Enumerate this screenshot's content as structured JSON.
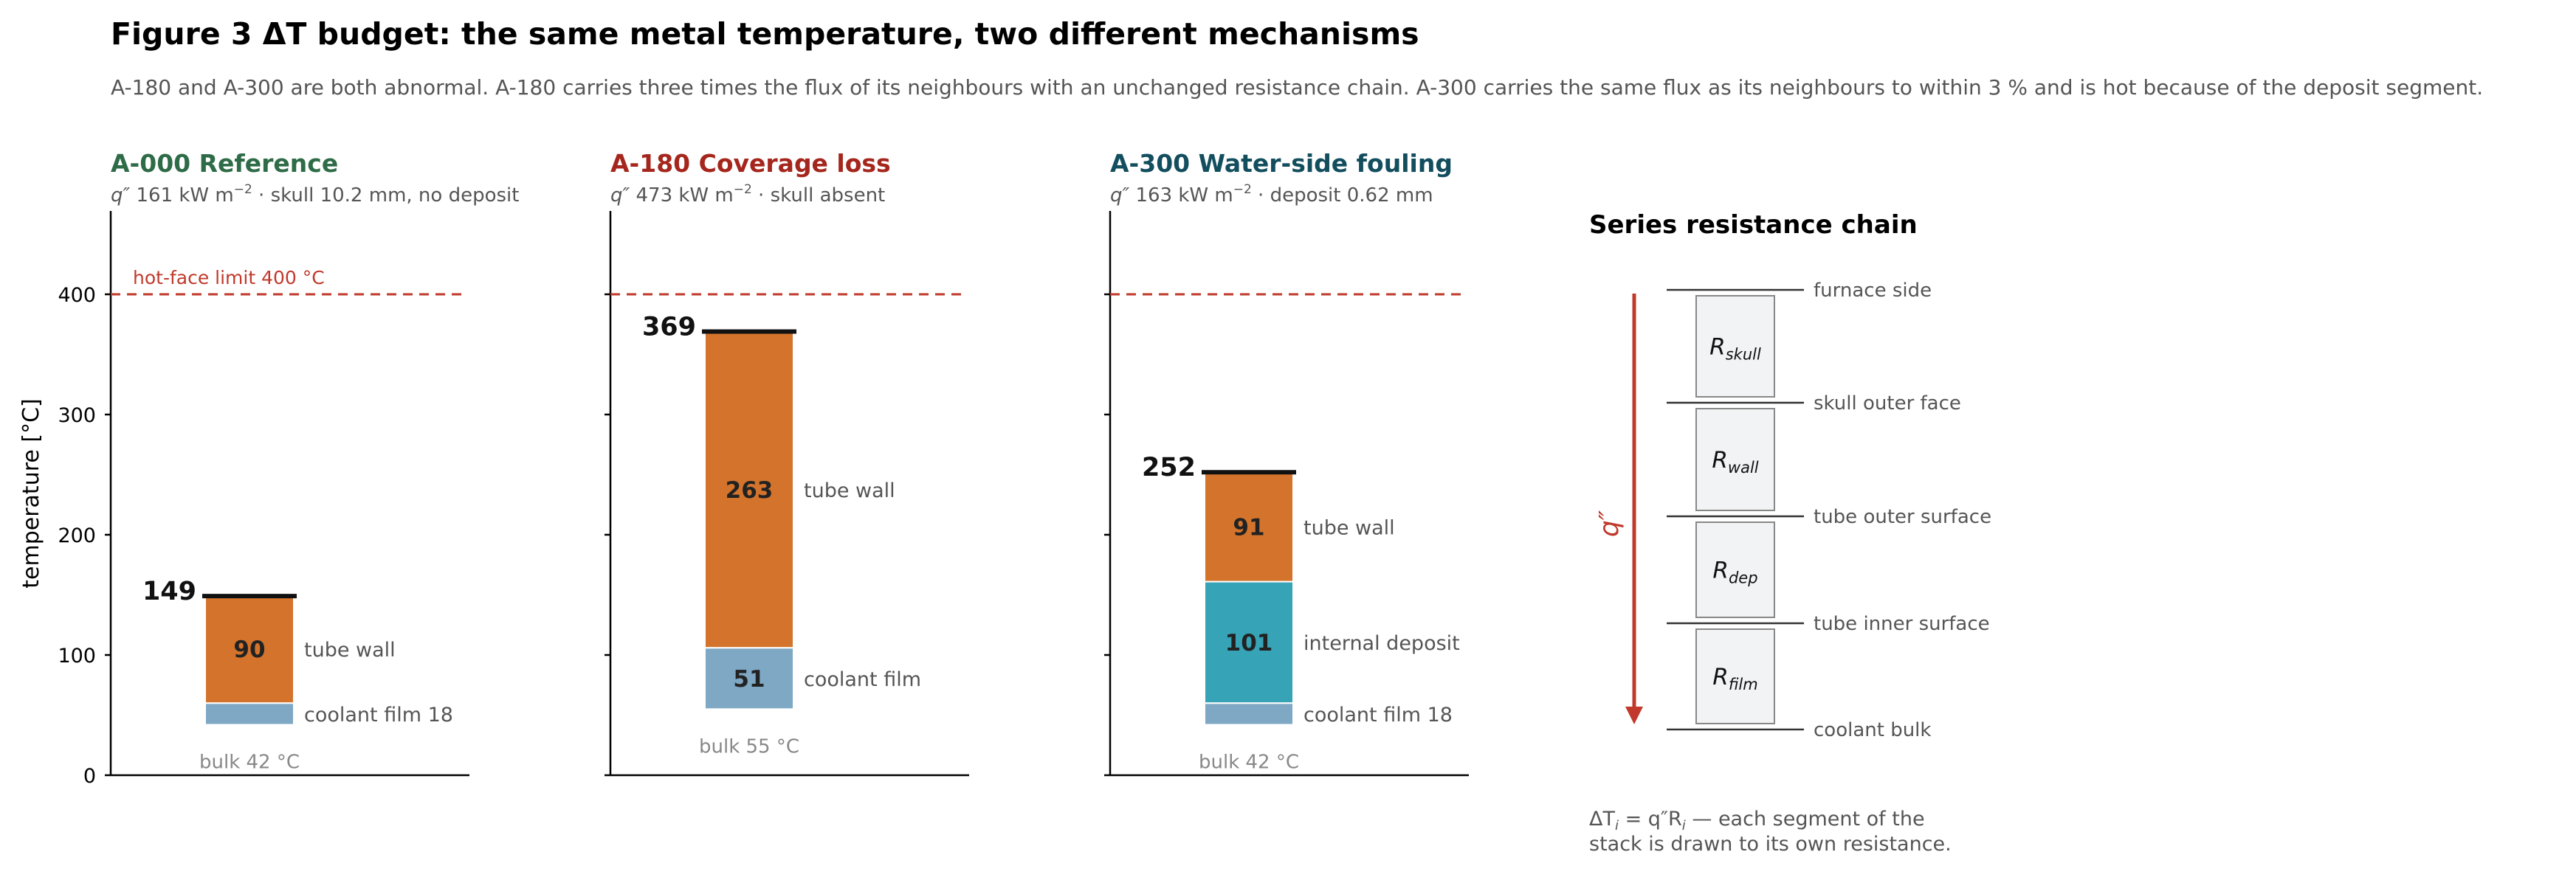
{
  "figure": {
    "title": "Figure 3   ΔT budget: the same metal temperature, two different mechanisms",
    "caption": "A-180 and A-300 are both abnormal. A-180 carries three times the flux of its neighbours with an unchanged resistance chain. A-300 carries the same flux as its neighbours to within 3 % and is hot because of the deposit segment."
  },
  "colors": {
    "reference": "#2e6b47",
    "coverage_loss": "#a5261c",
    "fouling": "#134e5e",
    "tube_wall": "#d4742c",
    "coolant_film": "#7ea8c4",
    "internal_deposit": "#37a3b6",
    "limit_line": "#c0392b",
    "axis": "#000000",
    "muted_text": "#555555",
    "bulk_text": "#888888"
  },
  "chart_data": [
    {
      "type": "bar",
      "stacked": true,
      "id": "A-000",
      "heading": "Reference",
      "heading_color": "#2e6b47",
      "subtitle_tail": " 161 kW m",
      "subtitle_rest": "  ·  skull 10.2 mm, no deposit",
      "ylabel": "temperature  [°C]",
      "ylim": [
        0,
        470
      ],
      "yticks": [
        "0",
        "100",
        "200",
        "300",
        "400"
      ],
      "limit": {
        "value": 400,
        "label": "hot-face limit 400 °C"
      },
      "bulk": 42,
      "bulk_label": "bulk 42 °C",
      "top_value": 149,
      "top_label": "149",
      "segments": [
        {
          "name": "coolant film",
          "value": 18,
          "color": "#7ea8c4",
          "inner_label": "",
          "side_label": "coolant film  18"
        },
        {
          "name": "tube wall",
          "value": 90,
          "color": "#d4742c",
          "inner_label": "90",
          "side_label": "tube wall"
        }
      ]
    },
    {
      "type": "bar",
      "stacked": true,
      "id": "A-180",
      "heading": "Coverage loss",
      "heading_color": "#a5261c",
      "subtitle_tail": " 473 kW m",
      "subtitle_rest": "  ·  skull absent",
      "ylabel": "",
      "ylim": [
        0,
        470
      ],
      "yticks": [],
      "limit": {
        "value": 400,
        "label": ""
      },
      "bulk": 55,
      "bulk_label": "bulk 55 °C",
      "top_value": 369,
      "top_label": "369",
      "segments": [
        {
          "name": "coolant film",
          "value": 51,
          "color": "#7ea8c4",
          "inner_label": "51",
          "side_label": "coolant film"
        },
        {
          "name": "tube wall",
          "value": 263,
          "color": "#d4742c",
          "inner_label": "263",
          "side_label": "tube wall"
        }
      ]
    },
    {
      "type": "bar",
      "stacked": true,
      "id": "A-300",
      "heading": "Water-side fouling",
      "heading_color": "#134e5e",
      "subtitle_tail": " 163 kW m",
      "subtitle_rest": "  ·  deposit 0.62 mm",
      "ylabel": "",
      "ylim": [
        0,
        470
      ],
      "yticks": [],
      "limit": {
        "value": 400,
        "label": ""
      },
      "bulk": 42,
      "bulk_label": "bulk 42 °C",
      "top_value": 252,
      "top_label": "252",
      "segments": [
        {
          "name": "coolant film",
          "value": 18,
          "color": "#7ea8c4",
          "inner_label": "",
          "side_label": "coolant film  18"
        },
        {
          "name": "internal deposit",
          "value": 101,
          "color": "#37a3b6",
          "inner_label": "101",
          "side_label": "internal deposit"
        },
        {
          "name": "tube wall",
          "value": 91,
          "color": "#d4742c",
          "inner_label": "91",
          "side_label": "tube wall"
        }
      ]
    }
  ],
  "chain": {
    "title": "Series resistance chain",
    "flux_label": "q″",
    "levels": [
      "furnace side",
      "skull outer face",
      "tube outer surface",
      "tube inner surface",
      "coolant bulk"
    ],
    "resistors": [
      {
        "base": "R",
        "sub": "skull"
      },
      {
        "base": "R",
        "sub": "wall"
      },
      {
        "base": "R",
        "sub": "dep"
      },
      {
        "base": "R",
        "sub": "film"
      }
    ],
    "note_line1": "ΔT",
    "note_line1_sub": "i",
    "note_line1_eq": " = q″R",
    "note_line1_sub2": "i",
    "note_line1_rest": " — each segment of the",
    "note_line2": "stack is drawn to its own resistance."
  }
}
